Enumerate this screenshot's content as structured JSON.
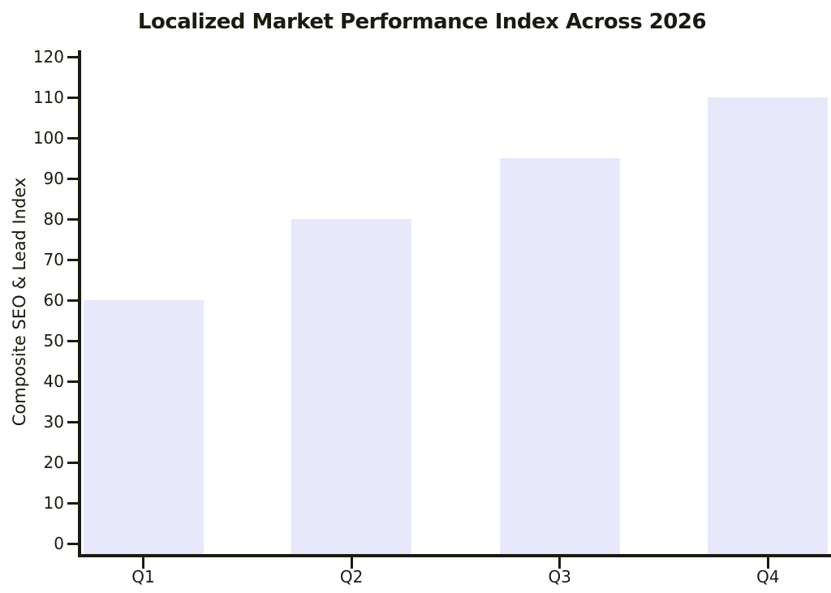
{
  "chart_data": {
    "type": "bar",
    "title": "Localized Market Performance Index Across 2026",
    "xlabel": "",
    "ylabel": "Composite SEO & Lead Index",
    "categories": [
      "Q1",
      "Q2",
      "Q3",
      "Q4"
    ],
    "values": [
      60,
      80,
      95,
      110
    ],
    "ylim": [
      0,
      120
    ],
    "ytick_step": 10,
    "yticks": [
      0,
      10,
      20,
      30,
      40,
      50,
      60,
      70,
      80,
      90,
      100,
      110,
      120
    ],
    "grid": false,
    "legend": null,
    "bar_color": "#e8e8fb",
    "axis_color": "#1b1a10",
    "background_color": "#ffffff"
  }
}
